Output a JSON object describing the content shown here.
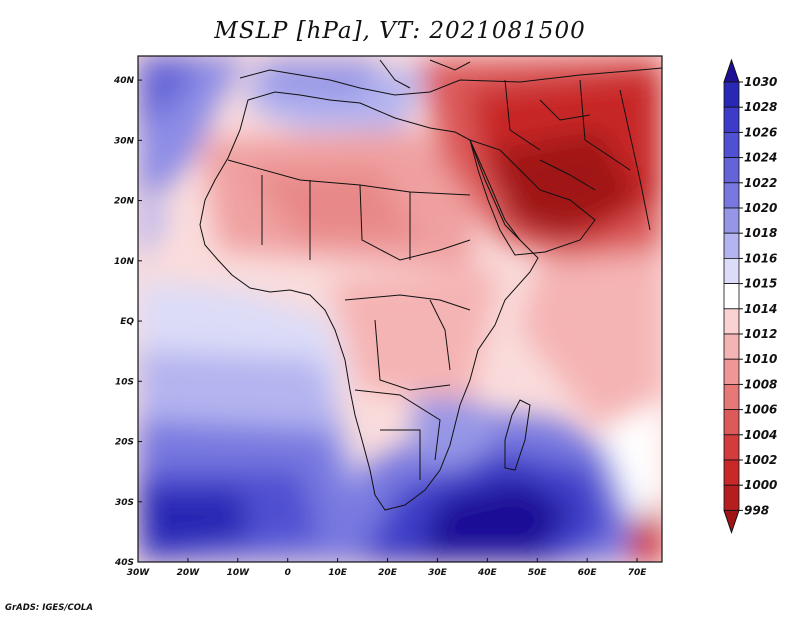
{
  "title": "MSLP [hPa], VT: 2021081500",
  "credit": "GrADS: IGES/COLA",
  "axes": {
    "lon_labels": [
      "30W",
      "20W",
      "10W",
      "0",
      "10E",
      "20E",
      "30E",
      "40E",
      "50E",
      "60E",
      "70E"
    ],
    "lon_values": [
      -30,
      -20,
      -10,
      0,
      10,
      20,
      30,
      40,
      50,
      60,
      70
    ],
    "lat_labels": [
      "40N",
      "30N",
      "20N",
      "10N",
      "EQ",
      "10S",
      "20S",
      "30S",
      "40S"
    ],
    "lat_values": [
      40,
      30,
      20,
      10,
      0,
      -10,
      -20,
      -30,
      -40
    ],
    "lon_range": [
      -30,
      75
    ],
    "lat_range": [
      -40,
      44
    ]
  },
  "colorbar": {
    "levels": [
      "1030",
      "1028",
      "1026",
      "1024",
      "1022",
      "1020",
      "1018",
      "1016",
      "1015",
      "1014",
      "1012",
      "1010",
      "1008",
      "1006",
      "1004",
      "1002",
      "1000",
      "998"
    ],
    "colors": [
      "#1e0f96",
      "#2828b4",
      "#3c3cc8",
      "#5050d2",
      "#6464d8",
      "#7878e0",
      "#9696e6",
      "#b4b4f0",
      "#dcdcf8",
      "#ffffff",
      "#fad2d2",
      "#f5b4b4",
      "#f09696",
      "#e67878",
      "#dc5a5a",
      "#d23c3c",
      "#c82828",
      "#b41e1e",
      "#a01414"
    ]
  }
}
